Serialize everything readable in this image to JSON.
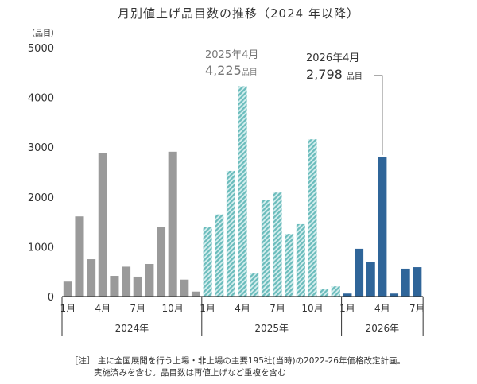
{
  "chart_data": {
    "type": "bar",
    "title": "月別値上げ品目数の推移（2024 年以降）",
    "ylabel": "（品目）",
    "ylim": [
      0,
      5000
    ],
    "yticks": [
      0,
      1000,
      2000,
      3000,
      4000,
      5000
    ],
    "categories": [
      "1月",
      "2月",
      "3月",
      "4月",
      "5月",
      "6月",
      "7月",
      "8月",
      "9月",
      "10月",
      "11月",
      "12月",
      "1月",
      "2月",
      "3月",
      "4月",
      "5月",
      "6月",
      "7月",
      "8月",
      "9月",
      "10月",
      "11月",
      "12月",
      "1月",
      "2月",
      "3月",
      "4月",
      "5月",
      "6月",
      "7月"
    ],
    "tick_labels": [
      "1月",
      "4月",
      "7月",
      "10月"
    ],
    "groups": [
      {
        "name": "2024年",
        "start": 0,
        "count": 12,
        "color": "#9a9a9a",
        "style": "solid"
      },
      {
        "name": "2025年",
        "start": 12,
        "count": 12,
        "color": "#7cc7c7",
        "style": "hatched"
      },
      {
        "name": "2026年",
        "start": 24,
        "count": 7,
        "color": "#2f6599",
        "style": "solid"
      }
    ],
    "values": [
      300,
      1610,
      750,
      2890,
      415,
      600,
      400,
      655,
      1405,
      2910,
      340,
      100,
      1405,
      1650,
      2525,
      4225,
      465,
      1935,
      2090,
      1260,
      1455,
      3160,
      145,
      205,
      60,
      960,
      700,
      2798,
      60,
      560,
      590
    ],
    "annotations": [
      {
        "label": "2025年4月",
        "value_text": "4,225",
        "unit": "品目"
      },
      {
        "label": "2026年4月",
        "value_text": "2,798",
        "unit": "品目"
      }
    ]
  },
  "notes": [
    "［注］ 主に全国展開を行う上場・非上場の主要195社(当時)の2022-26年価格改定計画。",
    "実施済みを含む。品目数は再値上げなど重複を含む"
  ]
}
